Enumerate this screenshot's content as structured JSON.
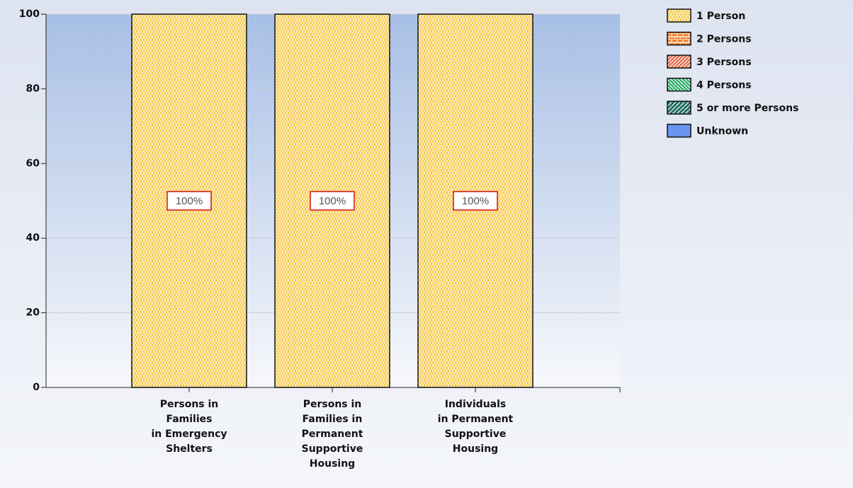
{
  "chart_data": {
    "type": "stacked_bar",
    "categories": [
      "Persons in\nFamilies\nin Emergency\nShelters",
      "Persons in\nFamilies in\nPermanent\nSupportive\nHousing",
      "Individuals\nin Permanent\nSupportive\nHousing"
    ],
    "series": [
      {
        "name": "1 Person",
        "color": "#f7c63e",
        "values": [
          100,
          100,
          100
        ],
        "value_labels": [
          "100%",
          "100%",
          "100%"
        ]
      },
      {
        "name": "2 Persons",
        "color": "#f0812e",
        "values": [
          0,
          0,
          0
        ]
      },
      {
        "name": "3 Persons",
        "color": "#e0704f",
        "values": [
          0,
          0,
          0
        ]
      },
      {
        "name": "4 Persons",
        "color": "#2fae6e",
        "values": [
          0,
          0,
          0
        ]
      },
      {
        "name": "5 or more Persons",
        "color": "#1f6d5f",
        "values": [
          0,
          0,
          0
        ]
      },
      {
        "name": "Unknown",
        "color": "#6a94f0",
        "values": [
          0,
          0,
          0
        ]
      }
    ],
    "ylim": [
      0,
      100
    ],
    "yticks": [
      0,
      20,
      40,
      60,
      80,
      100
    ],
    "grid": true,
    "legend": "right"
  }
}
